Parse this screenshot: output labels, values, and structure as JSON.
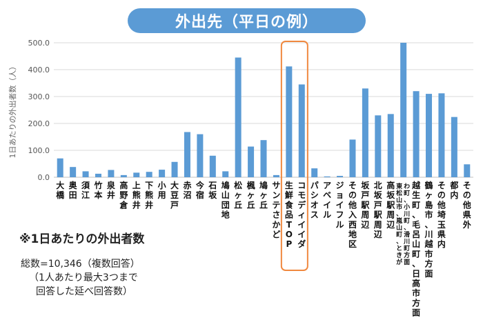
{
  "title": "外出先（平日の例）",
  "notes": {
    "main": "※1日あたりの外出者数",
    "total": "総数=10,346（複数回答）",
    "detail1": "（1人あたり最大3つまで",
    "detail2": "回答した延べ回答数）"
  },
  "colors": {
    "bar": "#5b9bd5",
    "title_bg": "#5b9bd5",
    "highlight": "#f0883e",
    "grid": "#d9d9d9"
  },
  "chart_data": {
    "type": "bar",
    "title": "外出先（平日の例）",
    "ylabel": "1日あたりの外出者数（人）",
    "xlabel": "",
    "ylim": [
      0,
      500
    ],
    "yticks": [
      "0.0",
      "100.0",
      "200.0",
      "300.0",
      "400.0",
      "500.0"
    ],
    "grid": true,
    "highlight_category": "生鮮食品TOP",
    "categories": [
      "大橋",
      "奥田",
      "須江",
      "竹本",
      "泉井",
      "高野倉",
      "上熊井",
      "下熊井",
      "小用",
      "大豆戸",
      "赤沼",
      "今宿",
      "石坂",
      "鳩山団地",
      "松ヶ丘",
      "楓ヶ丘",
      "鳩ヶ丘",
      "サンテさかど",
      "生鮮食品TOP",
      "コモディイイダ",
      "パシオス",
      "アベイル",
      "ジョイフル",
      "その他入西地区",
      "坂戸駅周辺",
      "北坂戸駅周辺",
      "高坂駅周辺",
      "東松山市、嵐山町、ときがわ町、小川町、滑川町方面",
      "越生町、毛呂山町、日高市方面",
      "鶴ヶ島市、川越市方面",
      "その他埼玉県内",
      "都内",
      "その他県外"
    ],
    "values": [
      70,
      38,
      22,
      13,
      27,
      8,
      17,
      20,
      28,
      57,
      168,
      160,
      80,
      22,
      445,
      114,
      138,
      8,
      412,
      345,
      33,
      3,
      5,
      140,
      330,
      230,
      235,
      505,
      320,
      310,
      312,
      224,
      48
    ]
  }
}
